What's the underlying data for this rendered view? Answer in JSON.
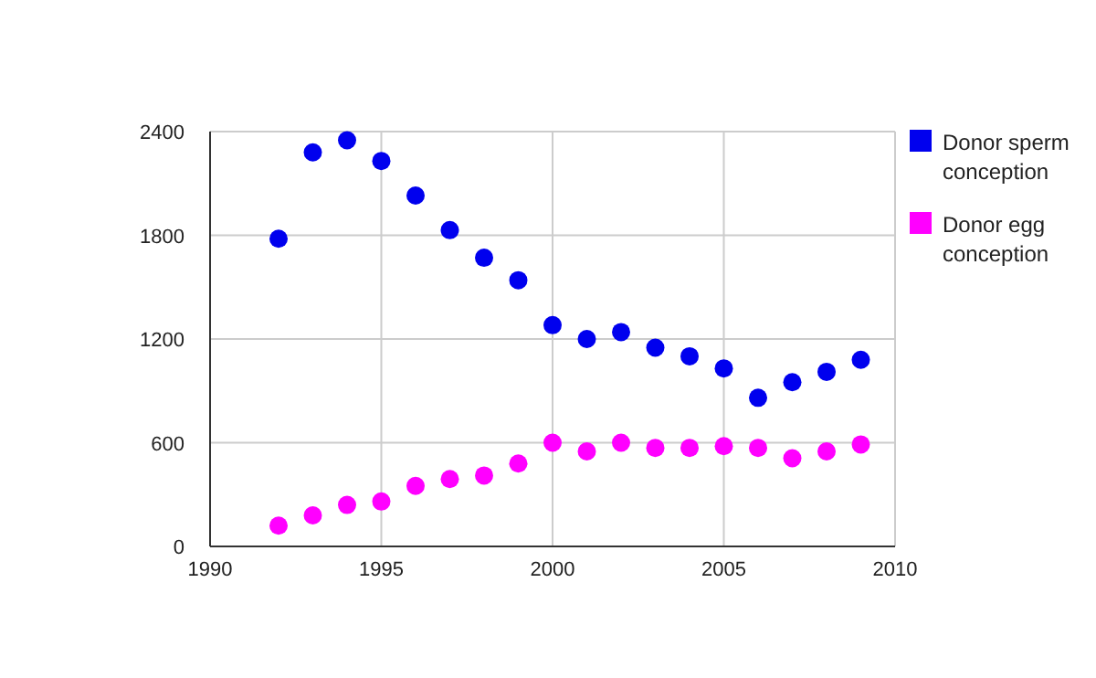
{
  "chart_data": {
    "type": "scatter",
    "x": [
      1992,
      1993,
      1994,
      1995,
      1996,
      1997,
      1998,
      1999,
      2000,
      2001,
      2002,
      2003,
      2004,
      2005,
      2006,
      2007,
      2008,
      2009
    ],
    "series": [
      {
        "name": "Donor sperm conception",
        "color": "#0000ee",
        "values": [
          1780,
          2280,
          2350,
          2230,
          2030,
          1830,
          1670,
          1540,
          1280,
          1200,
          1240,
          1150,
          1100,
          1030,
          860,
          950,
          1010,
          1080
        ]
      },
      {
        "name": "Donor egg conception",
        "color": "#ff00ff",
        "values": [
          120,
          180,
          240,
          260,
          350,
          390,
          410,
          480,
          600,
          550,
          600,
          570,
          570,
          580,
          570,
          510,
          550,
          590
        ]
      }
    ],
    "xlim": [
      1990,
      2010
    ],
    "xticks": [
      1990,
      1995,
      2000,
      2005,
      2010
    ],
    "ylim": [
      0,
      2400
    ],
    "yticks": [
      0,
      600,
      1200,
      1800,
      2400
    ],
    "grid": true,
    "legend": "right",
    "marker": "circle"
  }
}
